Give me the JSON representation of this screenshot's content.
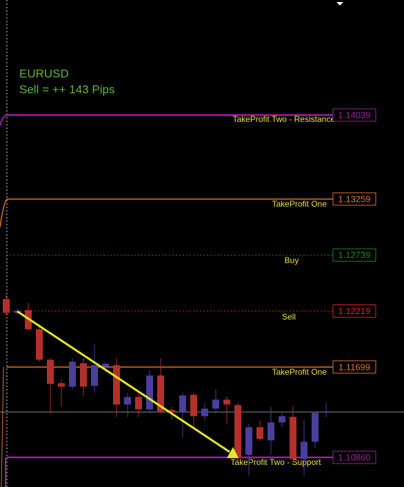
{
  "symbol": "EURUSD",
  "signal": "Sell = ++ 143 Pips",
  "levels": [
    {
      "label": "TakeProfit Two - Resistance",
      "price": 1.14039,
      "color": "#a020a0",
      "style": "solid"
    },
    {
      "label": "TakeProfit One",
      "price": 1.13259,
      "color": "#e8742a",
      "style": "solid"
    },
    {
      "label": "Buy",
      "price": 1.12739,
      "color": "#1f8a1f",
      "style": "dotted"
    },
    {
      "label": "Sell",
      "price": 1.12219,
      "color": "#d8242a",
      "style": "dotted"
    },
    {
      "label": "TakeProfit One",
      "price": 1.11699,
      "color": "#e8742a",
      "style": "solid"
    },
    {
      "label": "TakeProfit Two - Support",
      "price": {
        "value": 1.1086,
        "label": "1.10860"
      },
      "color": "#a020a0",
      "style": "solid"
    }
  ],
  "bid": 1.11281,
  "bull_color": "#4a3f9e",
  "bear_color": "#b3302b",
  "candles": [
    {
      "o": 1.1233,
      "h": 1.12369,
      "l": 1.12177,
      "c": 1.12202
    },
    {
      "o": 1.12202,
      "h": 1.12241,
      "l": 1.12189,
      "c": 1.12221
    },
    {
      "o": 1.12228,
      "h": 1.12292,
      "l": 1.12036,
      "c": 1.12049
    },
    {
      "o": 1.12049,
      "h": 1.121,
      "l": 1.11748,
      "c": 1.11767
    },
    {
      "o": 1.11767,
      "h": 1.1178,
      "l": 1.11268,
      "c": 1.11543
    },
    {
      "o": 1.11549,
      "h": 1.11588,
      "l": 1.11332,
      "c": 1.11517
    },
    {
      "o": 1.11517,
      "h": 1.1178,
      "l": 1.11492,
      "c": 1.11748
    },
    {
      "o": 1.11735,
      "h": 1.1178,
      "l": 1.11428,
      "c": 1.11517
    },
    {
      "o": 1.11524,
      "h": 1.11908,
      "l": 1.1146,
      "c": 1.11716
    },
    {
      "o": 1.11703,
      "h": 1.11748,
      "l": 1.11652,
      "c": 1.11729
    },
    {
      "o": 1.11716,
      "h": 1.1178,
      "l": 1.11236,
      "c": 1.11351
    },
    {
      "o": 1.11351,
      "h": 1.1146,
      "l": 1.11236,
      "c": 1.11421
    },
    {
      "o": 1.11421,
      "h": 1.1146,
      "l": 1.11236,
      "c": 1.11306
    },
    {
      "o": 1.11306,
      "h": 1.11671,
      "l": 1.11268,
      "c": 1.1162
    },
    {
      "o": 1.1162,
      "h": 1.1178,
      "l": 1.11268,
      "c": 1.11287
    },
    {
      "o": 1.113,
      "h": 1.11332,
      "l": 1.11204,
      "c": 1.11281
    },
    {
      "o": 1.11281,
      "h": 1.1146,
      "l": 1.11044,
      "c": 1.11434
    },
    {
      "o": 1.11441,
      "h": 1.1146,
      "l": 1.1114,
      "c": 1.11242
    },
    {
      "o": 1.11242,
      "h": 1.11364,
      "l": 1.11204,
      "c": 1.11313
    },
    {
      "o": 1.11313,
      "h": 1.11492,
      "l": 1.11268,
      "c": 1.11396
    },
    {
      "o": 1.11396,
      "h": 1.11428,
      "l": 1.11172,
      "c": 1.11351
    },
    {
      "o": 1.11345,
      "h": 1.11364,
      "l": 1.10833,
      "c": 1.10852
    },
    {
      "o": 1.10884,
      "h": 1.11172,
      "l": 1.10692,
      "c": 1.1114
    },
    {
      "o": 1.1114,
      "h": 1.11204,
      "l": 1.11012,
      "c": 1.11031
    },
    {
      "o": 1.11018,
      "h": 1.11332,
      "l": 1.10884,
      "c": 1.11185
    },
    {
      "o": 1.11185,
      "h": 1.11268,
      "l": 1.1114,
      "c": 1.11242
    },
    {
      "o": 1.11236,
      "h": 1.11332,
      "l": 1.1082,
      "c": 1.10845
    },
    {
      "o": 1.10845,
      "h": 1.11204,
      "l": 1.10692,
      "c": 1.11005
    },
    {
      "o": 1.11005,
      "h": 1.11287,
      "l": 1.10948,
      "c": 1.11274
    },
    {
      "o": 1.11274,
      "h": 1.11364,
      "l": 1.11236,
      "c": 1.11287
    }
  ]
}
